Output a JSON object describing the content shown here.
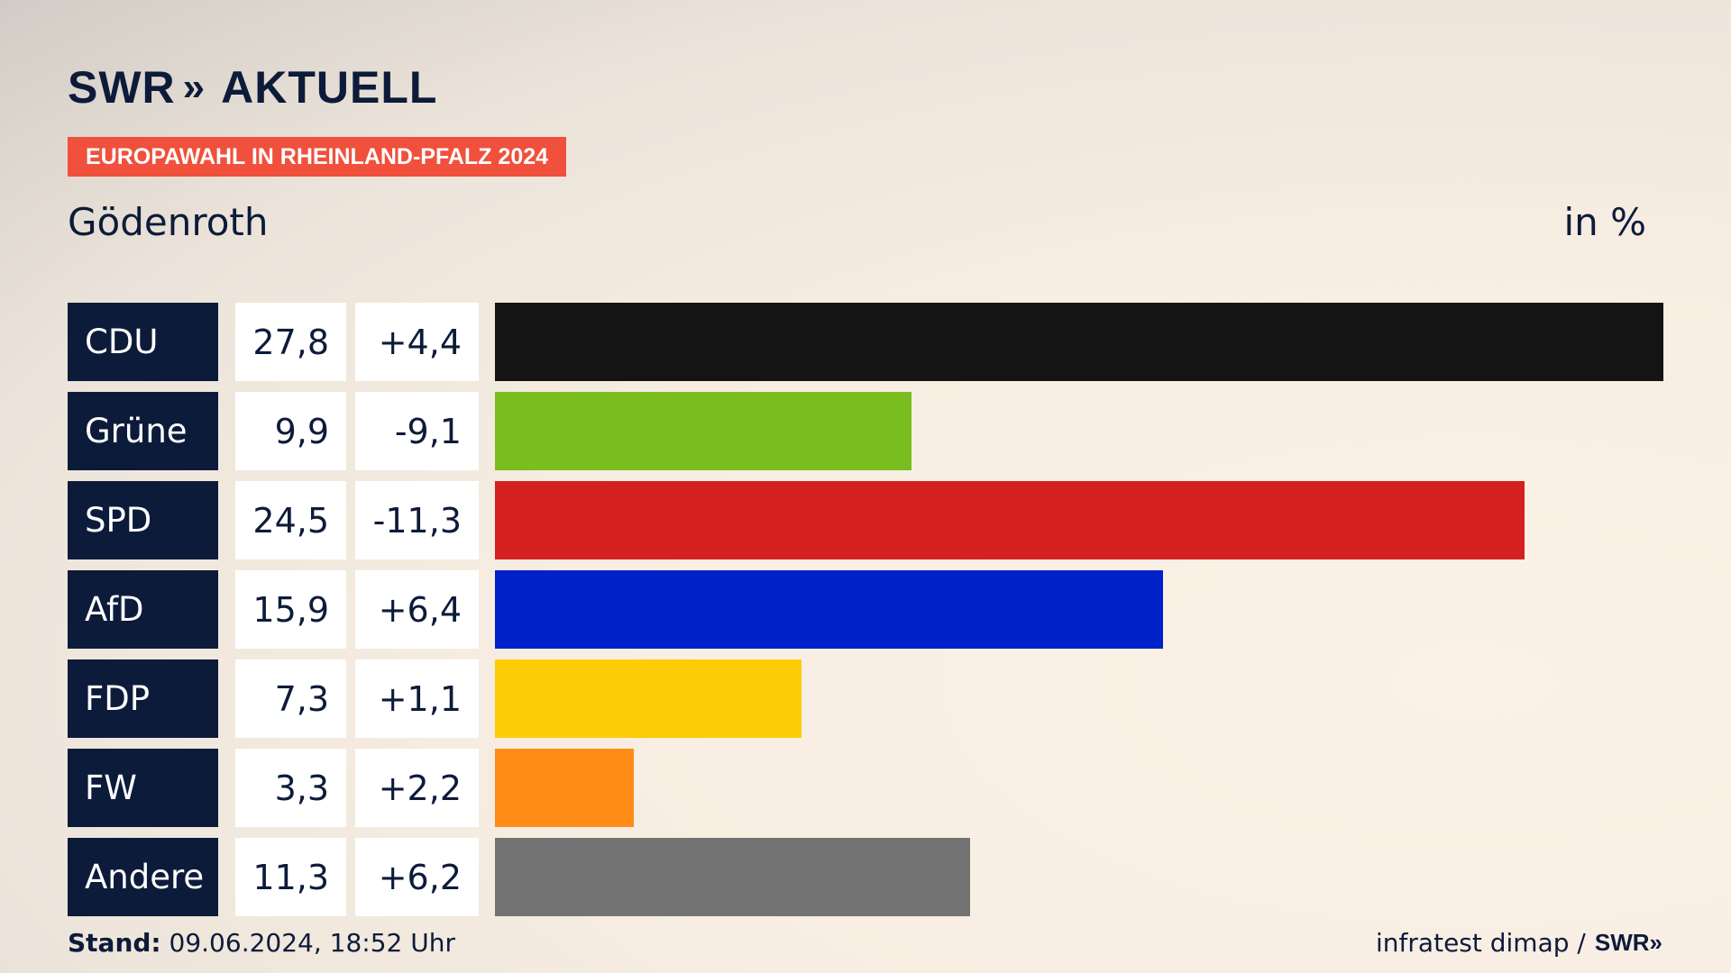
{
  "header": {
    "logo_text": "SWR",
    "logo_chevrons": "»",
    "logo_suffix": "AKTUELL",
    "badge": "EUROPAWAHL IN RHEINLAND-PFALZ 2024",
    "place": "Gödenroth",
    "unit": "in %"
  },
  "chart_data": {
    "type": "bar",
    "orientation": "horizontal",
    "categories": [
      "CDU",
      "Grüne",
      "SPD",
      "AfD",
      "FDP",
      "FW",
      "Andere"
    ],
    "values": [
      27.8,
      9.9,
      24.5,
      15.9,
      7.3,
      3.3,
      11.3
    ],
    "value_labels": [
      "27,8",
      "9,9",
      "24,5",
      "15,9",
      "7,3",
      "3,3",
      "11,3"
    ],
    "diff_labels": [
      "+4,4",
      "-9,1",
      "-11,3",
      "+6,4",
      "+1,1",
      "+2,2",
      "+6,2"
    ],
    "colors": [
      "#141414",
      "#79bd1f",
      "#d52020",
      "#0020c8",
      "#fecc07",
      "#fe8c17",
      "#737373"
    ],
    "xlim": [
      0,
      27.8
    ],
    "grid": false,
    "legend": "none"
  },
  "footer": {
    "stand_label": "Stand:",
    "stand_value": "09.06.2024, 18:52 Uhr",
    "source": "infratest dimap /",
    "source_logo": "SWR",
    "source_chevrons": "»"
  }
}
